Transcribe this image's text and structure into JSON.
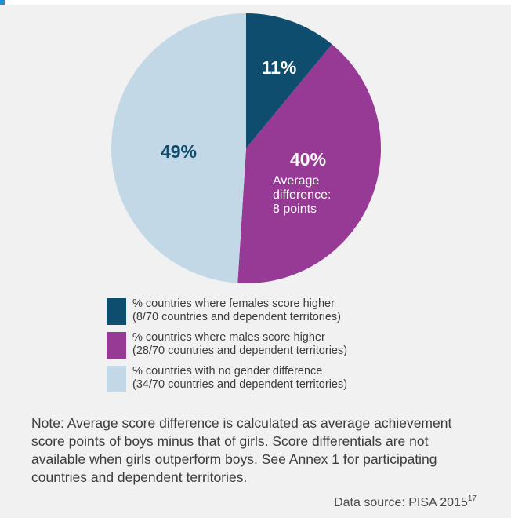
{
  "chart_data": {
    "type": "pie",
    "title": "",
    "slices": [
      {
        "label": "% countries where females score higher",
        "detail": "(8/70  countries and dependent territories)",
        "value": 11,
        "display": "11%",
        "color": "#0e4d6e"
      },
      {
        "label": "% countries where males score higher",
        "detail": "(28/70  countries and dependent territories)",
        "value": 40,
        "display": "40%",
        "color": "#973a96",
        "annotation": [
          "Average",
          "difference:",
          "8 points"
        ]
      },
      {
        "label": "% countries with no gender difference",
        "detail": "(34/70 countries and dependent territories)",
        "value": 49,
        "display": "49%",
        "color": "#c3d8e6"
      }
    ],
    "legend_placement": "bottom"
  },
  "note": "Note: Average score difference is calculated as average achievement score points of boys minus that of girls. Score differentials are not available when girls outperform boys. See Annex 1 for participating countries and dependent territories.",
  "source": {
    "text": "Data source: PISA 2015",
    "superscript": "17"
  }
}
